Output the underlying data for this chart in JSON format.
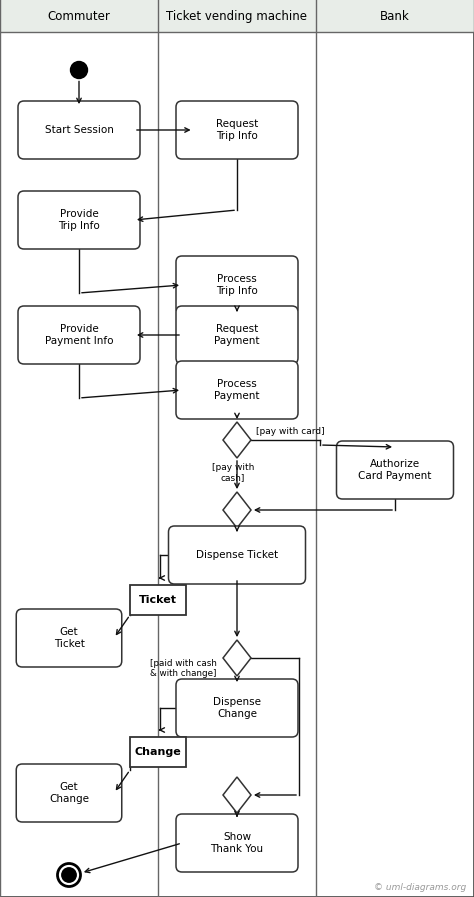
{
  "bg_color": "#ffffff",
  "header_bg": "#e8ede8",
  "swimlane_labels": [
    "Commuter",
    "Ticket vending machine",
    "Bank"
  ],
  "footer_text": "© uml-diagrams.org",
  "fig_width": 4.74,
  "fig_height": 8.97,
  "dpi": 100
}
